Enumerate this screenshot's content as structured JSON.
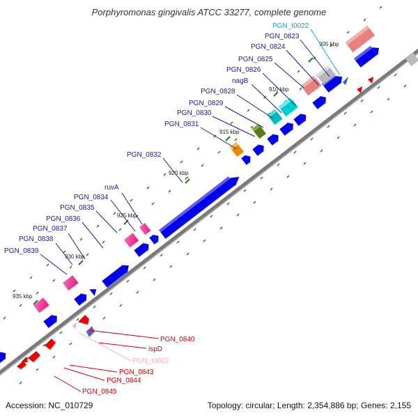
{
  "title": "Porphyromonas gingivalis ATCC 33277, complete genome",
  "accession": "Accession: NC_010729",
  "summary": "Topology: circular; Length: 2,354,886 bp; Genes: 2,155",
  "colors": {
    "forward_gene": "#0000ee",
    "reverse_gene": "#ee0000",
    "backbone": "#7a7a7a",
    "label_forward": "#1a1a9a",
    "label_reverse": "#cc0000",
    "tick": "#1a7a1a"
  },
  "scale_labels": [
    "905 kbp",
    "910 kbp",
    "915 kbp",
    "920 kbp",
    "925 kbp",
    "930 kbp",
    "935 kbp"
  ],
  "upper_labels": [
    "PGN_t0022",
    "PGN_0823",
    "PGN_0824",
    "PGN_0825",
    "PGN_0826",
    "nagB",
    "PGN_0828",
    "PGN_0829",
    "PGN_0830",
    "PGN_0831",
    "PGN_0832",
    "ruvA",
    "PGN_0834",
    "PGN_0835",
    "PGN_0836",
    "PGN_0837",
    "PGN_0838",
    "PGN_0839"
  ],
  "lower_labels": [
    "PGN_0840",
    "ispD",
    "PGN_t0023",
    "PGN_0843",
    "PGN_0844",
    "PGN_0845"
  ]
}
